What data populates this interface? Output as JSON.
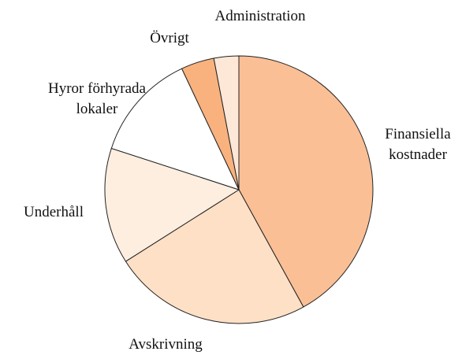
{
  "chart_data": {
    "type": "pie",
    "categories": [
      "Finansiella kostnader",
      "Avskrivning",
      "Underhåll",
      "Hyror förhyrada lokaler",
      "Övrigt",
      "Administration"
    ],
    "values": [
      42,
      24,
      14,
      13,
      4,
      3
    ],
    "colors": [
      "#fbbf96",
      "#fde0c5",
      "#fdeee0",
      "#ffffff",
      "#f9b27e",
      "#fde8d8"
    ]
  }
}
